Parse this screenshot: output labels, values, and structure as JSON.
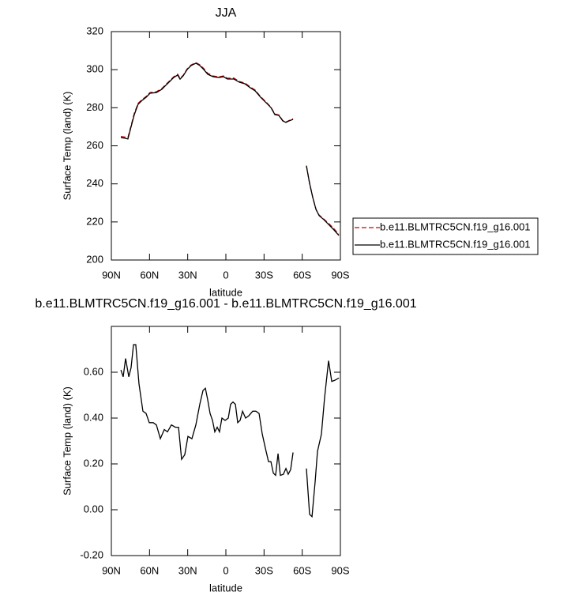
{
  "chart_data": [
    {
      "type": "line",
      "title": "JJA",
      "x_label": "latitude",
      "y_label": "Surface Temp (land) (K)",
      "x": [
        82.5,
        79.4,
        77,
        74.5,
        72,
        69,
        65.8,
        62.7,
        59.6,
        54.6,
        50.3,
        47.2,
        44,
        41,
        37.9,
        36,
        33.5,
        30.4,
        27.3,
        23.6,
        20.5,
        17.4,
        14.3,
        10,
        5.6,
        1.9,
        -1.2,
        -6.2,
        -10.6,
        -14.9,
        -19.2,
        -23,
        -27.3,
        -31.7,
        -35.4,
        -38.5,
        -41.6,
        -44.7,
        -47.2,
        -49.7,
        -52.8,
        -58,
        -63.3,
        -65.8,
        -68.3,
        -70.8,
        -73.3,
        -77,
        -80.7,
        -84.4,
        -88.8
      ],
      "series": [
        {
          "name": "b.e11.BLMTRC5CN.f19_g16.001",
          "color": "#cc0000",
          "style": "dashed",
          "values": [
            264.9,
            264.6,
            264.3,
            270.6,
            277,
            282.3,
            284.3,
            285.9,
            288,
            288.4,
            290.1,
            292.2,
            294.3,
            296.3,
            297.6,
            295.4,
            297.1,
            300.4,
            302.5,
            303.7,
            302.6,
            300.6,
            298.1,
            296.7,
            296.2,
            296.7,
            295.5,
            295.6,
            293.8,
            293,
            290.9,
            289.3,
            285.8,
            282.9,
            280.3,
            276.7,
            276.2,
            273.3,
            272.5,
            273.3,
            274.2,
            null,
            249.6,
            240.3,
            232.9,
            226.7,
            223.6,
            221.5,
            219.3,
            216.8,
            213.5
          ]
        },
        {
          "name": "b.e11.BLMTRC5CN.f19_g16.001",
          "color": "#000000",
          "style": "solid",
          "values": [
            264.3,
            264,
            263.6,
            270,
            276.3,
            281.8,
            283.9,
            285.5,
            287.6,
            288,
            289.7,
            291.8,
            293.9,
            295.9,
            297.2,
            295,
            296.8,
            300.1,
            302.2,
            303.4,
            302.2,
            300.1,
            297.6,
            296.3,
            295.9,
            296.3,
            295.1,
            295.1,
            293.4,
            292.6,
            290.5,
            288.9,
            285.5,
            282.6,
            280.1,
            276.4,
            276,
            273.1,
            272.3,
            273.1,
            273.9,
            null,
            249.4,
            240.3,
            232.8,
            226.6,
            223.3,
            221.2,
            218.7,
            216.2,
            212.9
          ]
        }
      ],
      "xlim": [
        90,
        -90
      ],
      "xticks": [
        {
          "value": 90,
          "label": "90N"
        },
        {
          "value": 60,
          "label": "60N"
        },
        {
          "value": 30,
          "label": "30N"
        },
        0,
        {
          "value": -30,
          "label": "30S"
        },
        {
          "value": -60,
          "label": "60S"
        },
        {
          "value": -90,
          "label": "90S"
        }
      ],
      "ylim": [
        200,
        320
      ],
      "yticks": [
        200,
        220,
        240,
        260,
        280,
        300,
        320
      ],
      "legend": "right"
    },
    {
      "type": "line",
      "title": "b.e11.BLMTRC5CN.f19_g16.001 - b.e11.BLMTRC5CN.f19_g16.001",
      "x_label": "latitude",
      "y_label": "Surface Temp (land) (K)",
      "x": [
        82.5,
        80.7,
        78.8,
        76.3,
        74.5,
        72.6,
        70.8,
        68.3,
        65.2,
        62.7,
        60.2,
        57.1,
        54.6,
        51.5,
        48.4,
        45.9,
        42.8,
        39.7,
        37.2,
        34.8,
        32.3,
        29.8,
        26.7,
        23.6,
        20.5,
        18,
        16.1,
        14.3,
        12.4,
        10.5,
        8.7,
        6.8,
        5,
        3.1,
        0.6,
        -1.9,
        -3.7,
        -5.6,
        -7.5,
        -9.3,
        -11.2,
        -13.1,
        -15.5,
        -18,
        -21.1,
        -23.6,
        -26.1,
        -28.6,
        -31,
        -33.5,
        -35.4,
        -37.3,
        -39.1,
        -41,
        -42.8,
        -45.2,
        -47.2,
        -49,
        -50.9,
        -52.8,
        -58,
        -63.3,
        -65.8,
        -67.7,
        -70.2,
        -72,
        -75.1,
        -77.6,
        -80.7,
        -83.2,
        -85.7,
        -88.8
      ],
      "series": [
        {
          "name": "diff",
          "color": "#000000",
          "style": "solid",
          "values": [
            0.61,
            0.58,
            0.66,
            0.58,
            0.62,
            0.72,
            0.72,
            0.55,
            0.43,
            0.42,
            0.38,
            0.38,
            0.37,
            0.31,
            0.35,
            0.34,
            0.37,
            0.36,
            0.36,
            0.22,
            0.24,
            0.32,
            0.31,
            0.37,
            0.46,
            0.52,
            0.53,
            0.48,
            0.42,
            0.39,
            0.34,
            0.36,
            0.34,
            0.4,
            0.39,
            0.4,
            0.46,
            0.47,
            0.46,
            0.38,
            0.39,
            0.43,
            0.4,
            0.41,
            0.43,
            0.43,
            0.42,
            0.33,
            0.27,
            0.21,
            0.21,
            0.16,
            0.15,
            0.245,
            0.15,
            0.155,
            0.18,
            0.155,
            0.175,
            0.25,
            null,
            0.18,
            -0.02,
            -0.03,
            0.125,
            0.255,
            0.33,
            0.49,
            0.65,
            0.56,
            0.565,
            0.575
          ]
        }
      ],
      "xlim": [
        90,
        -90
      ],
      "xticks": [
        {
          "value": 90,
          "label": "90N"
        },
        {
          "value": 60,
          "label": "60N"
        },
        {
          "value": 30,
          "label": "30N"
        },
        0,
        {
          "value": -30,
          "label": "30S"
        },
        {
          "value": -60,
          "label": "60S"
        },
        {
          "value": -90,
          "label": "90S"
        }
      ],
      "ylim": [
        -0.2,
        0.8
      ],
      "yticks": [
        {
          "value": -0.2,
          "label": "-0.20"
        },
        {
          "value": 0,
          "label": "0.00"
        },
        {
          "value": 0.2,
          "label": "0.20"
        },
        {
          "value": 0.4,
          "label": "0.40"
        },
        {
          "value": 0.6,
          "label": "0.60"
        }
      ]
    }
  ]
}
